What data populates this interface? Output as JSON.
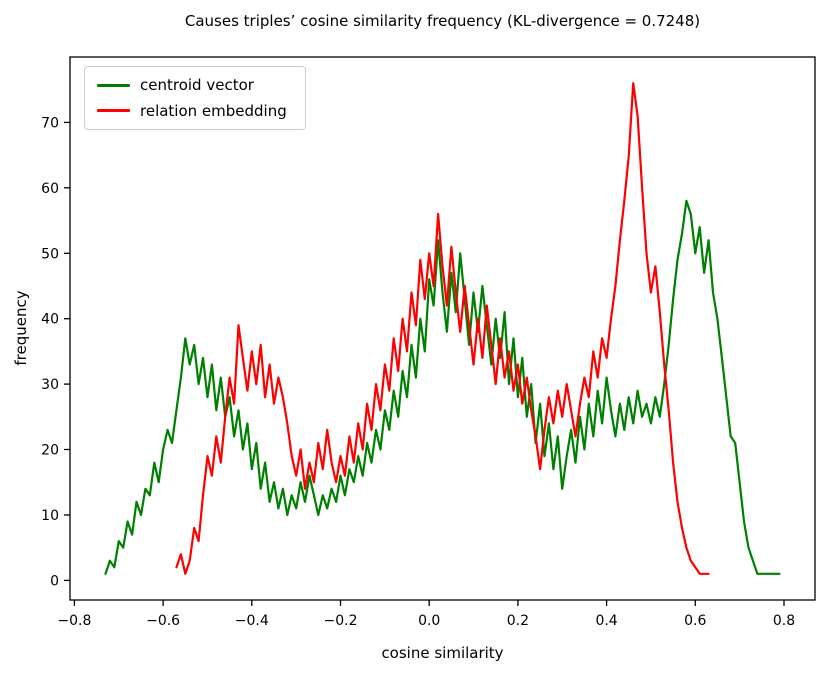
{
  "chart_data": {
    "type": "line",
    "title": "Causes triples’ cosine similarity frequency (KL-divergence = 0.7248)",
    "xlabel": "cosine similarity",
    "ylabel": "frequency",
    "xlim": [
      -0.81,
      0.87
    ],
    "ylim": [
      -3,
      80
    ],
    "grid": false,
    "legend_position": "upper left",
    "xtick_values": [
      -0.8,
      -0.6,
      -0.4,
      -0.2,
      0.0,
      0.2,
      0.4,
      0.6,
      0.8
    ],
    "xtick_labels": [
      "−0.8",
      "−0.6",
      "−0.4",
      "−0.2",
      "0.0",
      "0.2",
      "0.4",
      "0.6",
      "0.8"
    ],
    "ytick_values": [
      0,
      10,
      20,
      30,
      40,
      50,
      60,
      70
    ],
    "ytick_labels": [
      "0",
      "10",
      "20",
      "30",
      "40",
      "50",
      "60",
      "70"
    ],
    "series": [
      {
        "name": "centroid vector",
        "color": "#008000",
        "x0": -0.73,
        "dx": 0.01,
        "values": [
          1,
          3,
          2,
          6,
          5,
          9,
          7,
          12,
          10,
          14,
          13,
          18,
          15,
          20,
          23,
          21,
          26,
          31,
          37,
          33,
          36,
          30,
          34,
          28,
          33,
          26,
          31,
          25,
          28,
          22,
          26,
          20,
          24,
          17,
          21,
          14,
          18,
          12,
          15,
          11,
          14,
          10,
          13,
          11,
          15,
          12,
          16,
          13,
          10,
          13,
          11,
          14,
          12,
          16,
          13,
          17,
          15,
          19,
          16,
          21,
          18,
          23,
          20,
          26,
          23,
          29,
          25,
          32,
          28,
          36,
          31,
          40,
          35,
          46,
          42,
          52,
          44,
          38,
          47,
          41,
          50,
          43,
          36,
          44,
          38,
          45,
          39,
          33,
          40,
          34,
          41,
          30,
          37,
          28,
          34,
          25,
          30,
          21,
          27,
          19,
          24,
          17,
          22,
          14,
          19,
          23,
          18,
          25,
          20,
          27,
          22,
          29,
          24,
          31,
          26,
          22,
          27,
          23,
          28,
          24,
          29,
          25,
          27,
          24,
          28,
          25,
          30,
          36,
          43,
          49,
          53,
          58,
          56,
          50,
          54,
          47,
          52,
          44,
          40,
          34,
          28,
          22,
          21,
          15,
          9,
          5,
          3,
          1,
          1,
          1,
          1,
          1,
          1
        ]
      },
      {
        "name": "relation embedding",
        "color": "#ff0000",
        "x0": -0.57,
        "dx": 0.01,
        "values": [
          2,
          4,
          1,
          3,
          8,
          6,
          13,
          19,
          16,
          22,
          18,
          25,
          31,
          27,
          39,
          34,
          29,
          35,
          30,
          36,
          28,
          33,
          27,
          31,
          28,
          24,
          19,
          16,
          20,
          14,
          18,
          15,
          21,
          17,
          23,
          18,
          15,
          19,
          16,
          22,
          18,
          24,
          20,
          27,
          23,
          30,
          26,
          33,
          29,
          37,
          32,
          40,
          35,
          44,
          39,
          49,
          43,
          50,
          45,
          56,
          48,
          42,
          51,
          44,
          38,
          45,
          39,
          33,
          40,
          34,
          42,
          36,
          30,
          37,
          31,
          35,
          29,
          33,
          27,
          31,
          26,
          22,
          17,
          23,
          28,
          24,
          29,
          25,
          30,
          26,
          22,
          27,
          31,
          28,
          35,
          31,
          37,
          34,
          40,
          45,
          52,
          58,
          65,
          76,
          71,
          60,
          50,
          44,
          48,
          41,
          33,
          26,
          18,
          12,
          8,
          5,
          3,
          2,
          1,
          1,
          1
        ]
      }
    ]
  }
}
